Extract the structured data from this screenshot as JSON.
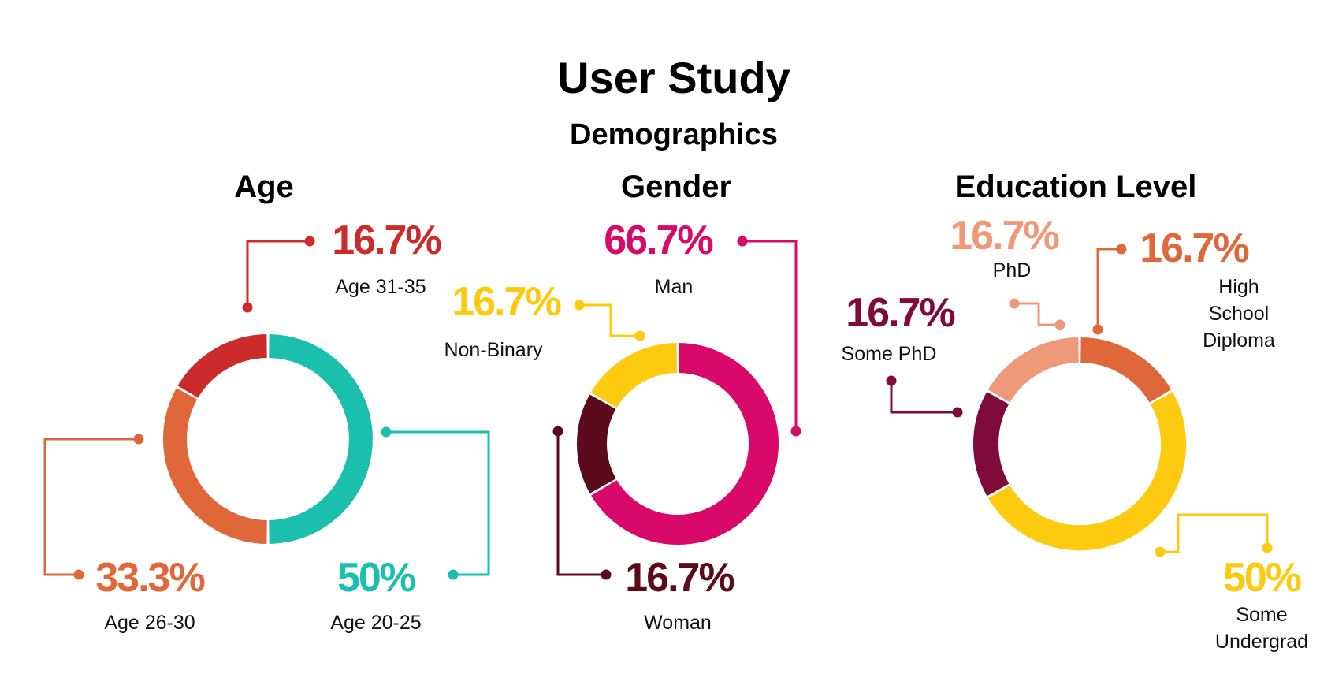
{
  "title": "User Study",
  "subtitle": "Demographics",
  "chart_data": [
    {
      "type": "donut",
      "title": "Age",
      "slices": [
        {
          "label": "Age 20-25",
          "value": 50,
          "display": "50%",
          "color": "#1ABFAE"
        },
        {
          "label": "Age 26-30",
          "value": 33.3,
          "display": "33.3%",
          "color": "#E0673A"
        },
        {
          "label": "Age 31-35",
          "value": 16.7,
          "display": "16.7%",
          "color": "#CC2B2B"
        }
      ]
    },
    {
      "type": "donut",
      "title": "Gender",
      "slices": [
        {
          "label": "Man",
          "value": 66.7,
          "display": "66.7%",
          "color": "#D9096A"
        },
        {
          "label": "Woman",
          "value": 16.7,
          "display": "16.7%",
          "color": "#5C0B1C"
        },
        {
          "label": "Non-Binary",
          "value": 16.7,
          "display": "16.7%",
          "color": "#FCCB10"
        }
      ]
    },
    {
      "type": "donut",
      "title": "Education Level",
      "slices": [
        {
          "label": "High School Diploma",
          "value": 16.7,
          "display": "16.7%",
          "color": "#E0673A"
        },
        {
          "label": "Some Undergrad",
          "value": 50,
          "display": "50%",
          "color": "#FCCB10"
        },
        {
          "label": "Some PhD",
          "value": 16.7,
          "display": "16.7%",
          "color": "#800A3A"
        },
        {
          "label": "PhD",
          "value": 16.7,
          "display": "16.7%",
          "color": "#EE9A7A"
        }
      ]
    }
  ]
}
